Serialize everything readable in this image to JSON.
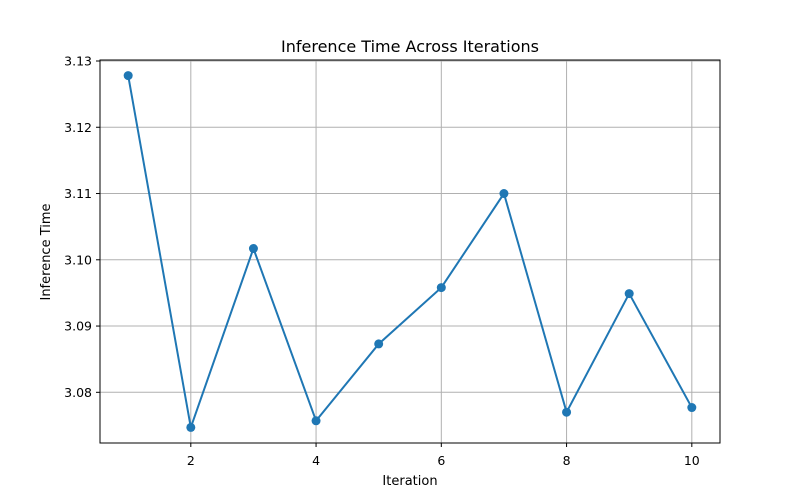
{
  "chart_data": {
    "type": "line",
    "title": "Inference Time Across Iterations",
    "xlabel": "Iteration",
    "ylabel": "Inference Time",
    "x": [
      1,
      2,
      3,
      4,
      5,
      6,
      7,
      8,
      9,
      10
    ],
    "series": [
      {
        "values": [
          3.1278,
          3.0747,
          3.1017,
          3.0757,
          3.0873,
          3.0958,
          3.11,
          3.077,
          3.0949,
          3.0777
        ]
      }
    ],
    "xticks": [
      2,
      4,
      6,
      8,
      10
    ],
    "yticks": [
      3.08,
      3.09,
      3.1,
      3.11,
      3.12,
      3.13
    ],
    "ytick_labels": [
      "3.08",
      "3.09",
      "3.10",
      "3.11",
      "3.12",
      "3.13"
    ],
    "xlim": [
      0.55,
      10.45
    ],
    "ylim": [
      3.07235,
      3.13015
    ],
    "grid": true,
    "marker": "circle",
    "color": "#1f77b4"
  }
}
